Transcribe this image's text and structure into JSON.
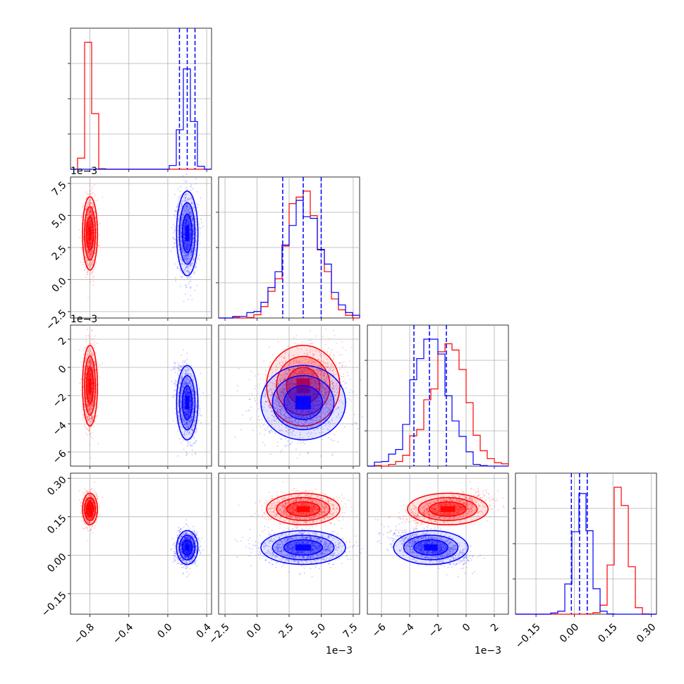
{
  "chart_data": {
    "type": "corner",
    "n_params": 4,
    "series": [
      {
        "color": "#ff0000"
      },
      {
        "color": "#0000ff"
      }
    ],
    "params": [
      {
        "range": [
          -1.0,
          0.45
        ],
        "ticks": [
          -0.8,
          -0.4,
          0.0,
          0.4
        ],
        "tick_labels": [
          "−0.8",
          "−0.4",
          "0.0",
          "0.4"
        ],
        "offset": ""
      },
      {
        "range": [
          -3.0,
          8.0
        ],
        "ticks": [
          -2.5,
          0.0,
          2.5,
          5.0,
          7.5
        ],
        "tick_labels": [
          "−2.5",
          "0.0",
          "2.5",
          "5.0",
          "7.5"
        ],
        "offset": "1e−3"
      },
      {
        "range": [
          -7.0,
          3.0
        ],
        "ticks": [
          -6,
          -4,
          -2,
          0,
          2
        ],
        "tick_labels": [
          "−6",
          "−4",
          "−2",
          "0",
          "2"
        ],
        "offset": "1e−3"
      },
      {
        "range": [
          -0.23,
          0.32
        ],
        "ticks": [
          -0.15,
          0.0,
          0.15,
          0.3
        ],
        "tick_labels": [
          "−0.15",
          "0.00",
          "0.15",
          "0.30"
        ],
        "offset": ""
      }
    ],
    "posteriors": [
      {
        "name": "red",
        "mean": [
          -0.8,
          0.0036,
          -0.0013,
          0.18
        ],
        "sd": [
          0.035,
          0.0013,
          0.0013,
          0.028
        ]
      },
      {
        "name": "blue",
        "mean": [
          0.2,
          0.0036,
          -0.0025,
          0.03
        ],
        "sd": [
          0.05,
          0.0015,
          0.0012,
          0.03
        ]
      }
    ],
    "quantile_lines": [
      [
        0.12,
        0.2,
        0.28
      ],
      [
        0.002,
        0.0036,
        0.005
      ],
      [
        -0.0037,
        -0.0026,
        -0.0014
      ],
      [
        -0.012,
        0.02,
        0.05
      ]
    ],
    "grid": true,
    "legend": "none"
  }
}
